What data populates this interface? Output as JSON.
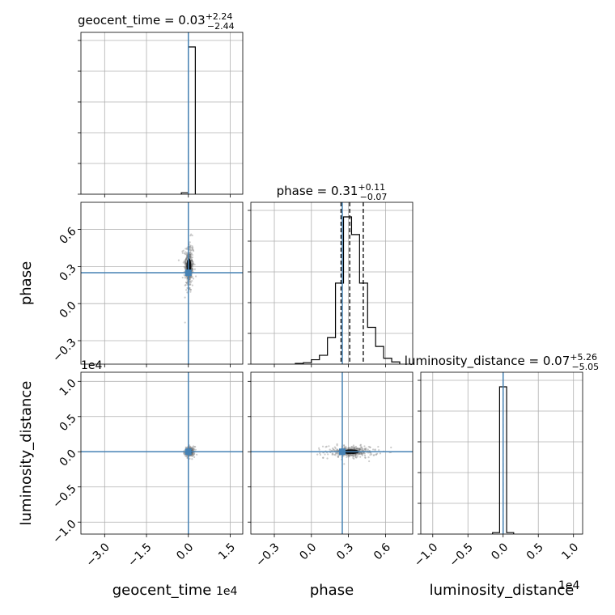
{
  "chart_data": {
    "type": "corner",
    "parameters": [
      "geocent_time",
      "phase",
      "luminosity_distance"
    ],
    "axis_labels": [
      "geocent_time",
      "phase",
      "luminosity_distance"
    ],
    "offset_labels": {
      "geocent_time": "1e4",
      "luminosity_distance": "1e4"
    },
    "ranges": {
      "geocent_time": [
        -3.85,
        1.95
      ],
      "phase": [
        -0.49,
        0.82
      ],
      "luminosity_distance": [
        -1.17,
        1.13
      ]
    },
    "ticks": {
      "geocent_time": {
        "values": [
          -3.0,
          -1.5,
          0.0,
          1.5
        ],
        "labels": [
          "−3.0",
          "−1.5",
          "0.0",
          "1.5"
        ]
      },
      "phase": {
        "values": [
          -0.3,
          0.0,
          0.3,
          0.6
        ],
        "labels": [
          "−0.3",
          "0.0",
          "0.3",
          "0.6"
        ]
      },
      "luminosity_distance": {
        "values": [
          -1.0,
          -0.5,
          0.0,
          0.5,
          1.0
        ],
        "labels": [
          "−1.0",
          "−0.5",
          "0.0",
          "0.5",
          "1.0"
        ]
      }
    },
    "truths": {
      "geocent_time": 0.0,
      "phase": 0.25,
      "luminosity_distance": 0.0
    },
    "truth_color": "#4682b4",
    "grid": true,
    "titles": [
      {
        "param": "geocent_time",
        "label": "geocent_time",
        "median": "0.03",
        "plus": "+2.24",
        "minus": "−2.44"
      },
      {
        "param": "phase",
        "label": "phase",
        "median": "0.31",
        "plus": "+0.11",
        "minus": "−0.07"
      },
      {
        "param": "luminosity_distance",
        "label": "luminosity_distance",
        "median": "0.07",
        "plus": "+5.26",
        "minus": "−5.05"
      }
    ],
    "histograms": {
      "geocent_time": {
        "edges": [
          -0.25,
          0.0,
          0.25
        ],
        "values": [
          0.01,
          1.0
        ],
        "quantiles": [
          0.0,
          0.0,
          0.0
        ]
      },
      "phase": {
        "edges": [
          -0.13,
          -0.065,
          0.0,
          0.065,
          0.13,
          0.195,
          0.26,
          0.325,
          0.39,
          0.455,
          0.52,
          0.585,
          0.65,
          0.715
        ],
        "values": [
          0.005,
          0.01,
          0.03,
          0.06,
          0.18,
          0.55,
          1.0,
          0.88,
          0.55,
          0.25,
          0.12,
          0.04,
          0.015
        ],
        "quantiles": [
          0.24,
          0.31,
          0.42
        ]
      },
      "luminosity_distance": {
        "edges": [
          -0.15,
          -0.05,
          0.05,
          0.15
        ],
        "values": [
          0.01,
          1.0,
          0.01
        ],
        "quantiles": [
          0.0,
          0.0,
          0.0
        ]
      }
    },
    "scatter_2d": {
      "phase_vs_geocent_time": {
        "center_x": 0.02,
        "center_y": 0.3,
        "spread_x": 0.05,
        "spread_y": 0.06
      },
      "luminosity_distance_vs_geocent_time": {
        "center_x": 0.05,
        "center_y": 0.0,
        "spread_x": 0.05,
        "spread_y": 0.02
      },
      "luminosity_distance_vs_phase": {
        "center_x": 0.32,
        "center_y": 0.0,
        "spread_x": 0.06,
        "spread_y": 0.025
      }
    }
  }
}
